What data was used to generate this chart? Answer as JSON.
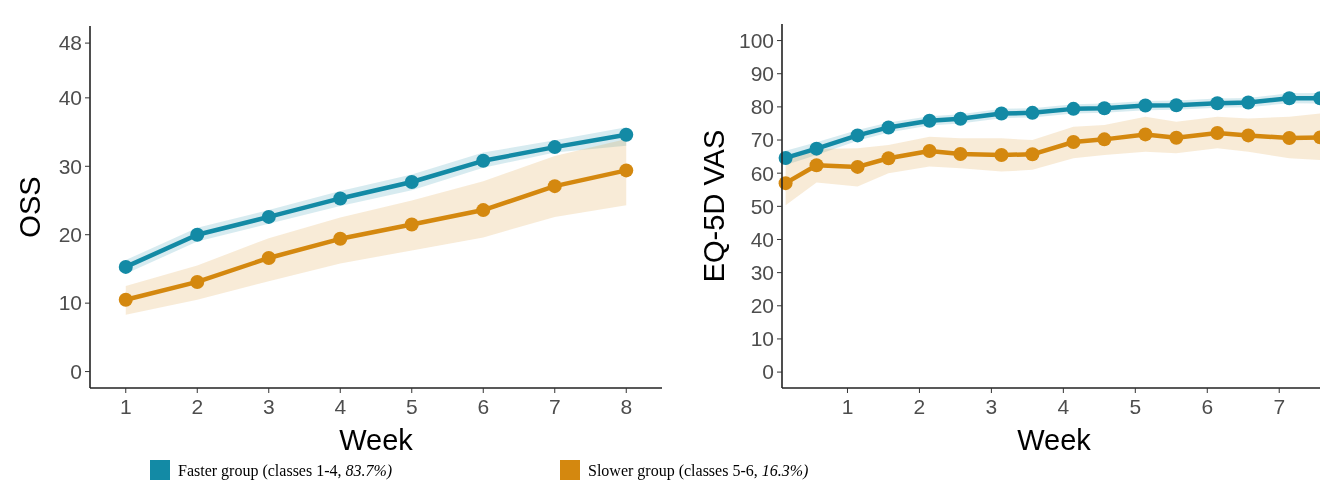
{
  "chart_data": [
    {
      "type": "line",
      "xlabel": "Week",
      "ylabel": "OSS",
      "x": [
        1,
        2,
        3,
        4,
        5,
        6,
        7,
        8
      ],
      "xlim": [
        0.5,
        8.5
      ],
      "xticks": [
        1,
        2,
        3,
        4,
        5,
        6,
        7,
        8
      ],
      "ylim": [
        -2.4,
        50.5
      ],
      "yticks": [
        0,
        10,
        20,
        30,
        40,
        48
      ],
      "marker": "circle",
      "legend": "bottom",
      "series": [
        {
          "name": "Faster group (classes 1-4, 83.7%)",
          "color": "#138aa5",
          "values": [
            15.3,
            20,
            22.6,
            25.3,
            27.7,
            30.8,
            32.8,
            34.6
          ],
          "lower": [
            14.3,
            19,
            21.6,
            24.2,
            26.5,
            29.8,
            32,
            33
          ],
          "upper": [
            16.3,
            21,
            23.6,
            26.4,
            28.8,
            32,
            33.8,
            35.7
          ]
        },
        {
          "name": "Slower group (classes 5-6, 16.3%)",
          "color": "#d4880f",
          "values": [
            10.5,
            13.1,
            16.6,
            19.4,
            21.5,
            23.6,
            27.1,
            29.4
          ],
          "lower": [
            8.3,
            10.5,
            13.2,
            15.8,
            17.7,
            19.6,
            22.6,
            24.3
          ],
          "upper": [
            12.5,
            15.5,
            19.5,
            22.5,
            25,
            27.8,
            31.5,
            34
          ]
        }
      ]
    },
    {
      "type": "line",
      "xlabel": "Week",
      "ylabel": "EQ-5D VAS",
      "x": [
        0.14,
        0.57,
        1.14,
        1.57,
        2.14,
        2.57,
        3.14,
        3.57,
        4.14,
        4.57,
        5.14,
        5.57,
        6.14,
        6.57,
        7.14,
        7.57
      ],
      "xlim": [
        0.09,
        7.65
      ],
      "xticks": [
        1,
        2,
        3,
        4,
        5,
        6,
        7
      ],
      "ylim": [
        -4.8,
        105
      ],
      "yticks": [
        0,
        10,
        20,
        30,
        40,
        50,
        60,
        70,
        80,
        90,
        100
      ],
      "marker": "circle",
      "series": [
        {
          "color": "#138aa5",
          "values": [
            64.6,
            67.4,
            71.4,
            73.8,
            75.8,
            76.4,
            78,
            78.2,
            79.4,
            79.6,
            80.4,
            80.5,
            81.1,
            81.3,
            82.6,
            82.6
          ],
          "lower": [
            62.5,
            65.5,
            69.8,
            72.3,
            74.4,
            75,
            76.6,
            76.8,
            78,
            78.2,
            79,
            79.1,
            79.7,
            79.9,
            81.1,
            81
          ],
          "upper": [
            66.8,
            69.3,
            73,
            75.3,
            77.2,
            77.8,
            79.4,
            79.6,
            80.8,
            81,
            81.8,
            81.9,
            82.5,
            82.7,
            84.1,
            84.2
          ]
        },
        {
          "color": "#d4880f",
          "values": [
            57,
            62.4,
            61.9,
            64.5,
            66.7,
            65.8,
            65.5,
            65.7,
            69.4,
            70.2,
            71.7,
            70.7,
            72.1,
            71.4,
            70.6,
            70.8
          ],
          "lower": [
            50.3,
            57.2,
            56,
            60,
            62,
            61.5,
            60.5,
            61,
            64.5,
            65.5,
            66.5,
            66,
            67.5,
            66.5,
            64.5,
            64
          ],
          "upper": [
            64,
            67.3,
            67.5,
            68.5,
            71,
            70.5,
            70.5,
            70,
            74,
            74.5,
            77,
            75.5,
            77,
            76.5,
            77,
            78
          ]
        }
      ]
    }
  ]
}
